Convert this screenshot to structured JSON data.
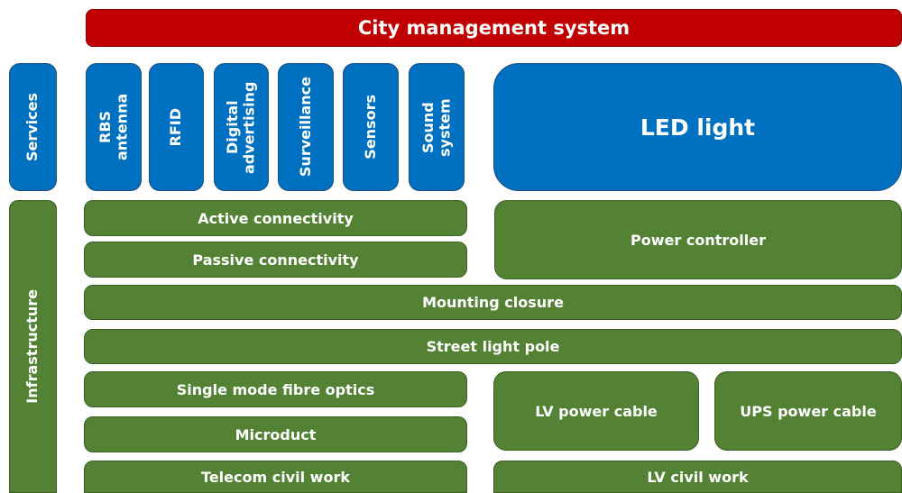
{
  "header": {
    "title": "City management system"
  },
  "services": {
    "label": "Services",
    "items": [
      "RBS antenna",
      "RFID",
      "Digital advertising",
      "Surveillance",
      "Sensors",
      "Sound system"
    ],
    "led_light": "LED light"
  },
  "infrastructure": {
    "label": "Infrastructure",
    "blocks": [
      "Active connectivity",
      "Passive connectivity",
      "Power controller",
      "Mounting closure",
      "Street light pole",
      "Single mode fibre optics",
      "Microduct",
      "LV power cable",
      "UPS power cable",
      "Telecom civil work",
      "LV civil work"
    ]
  }
}
